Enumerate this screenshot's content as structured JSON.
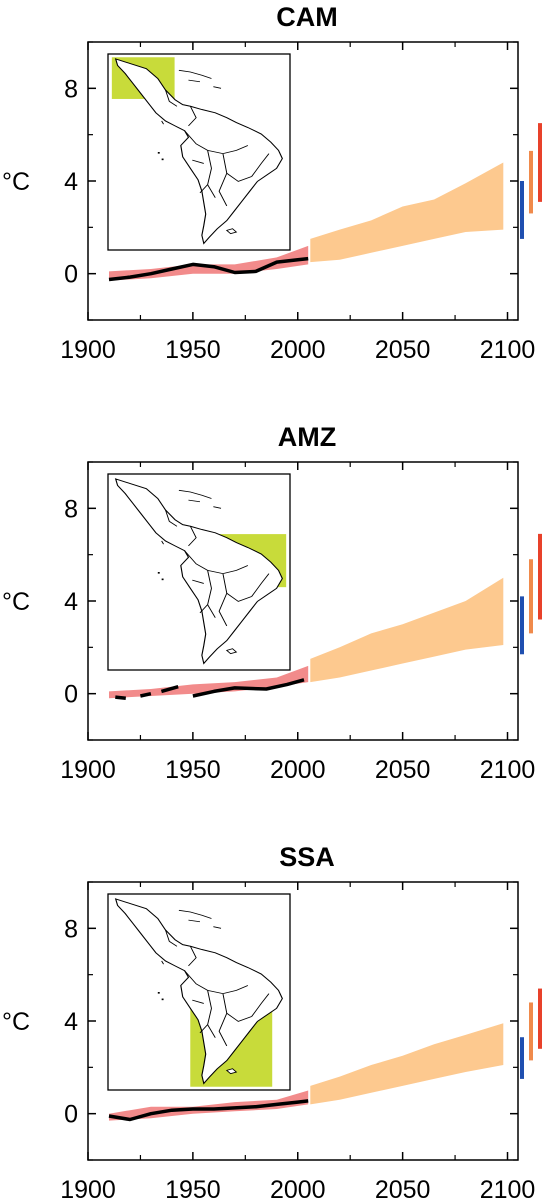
{
  "colors": {
    "obs_band": "#f28b8b",
    "obs_line": "#000000",
    "proj_band": "#fdc98f",
    "bar_blue": "#1f4fb0",
    "bar_orange": "#f08a4b",
    "bar_red": "#e8412a",
    "region": "#c8db3a"
  },
  "chart_data": [
    {
      "type": "area",
      "title": "CAM",
      "ylabel": "°C",
      "xlim": [
        1900,
        2105
      ],
      "ylim": [
        -2,
        10
      ],
      "xticks": [
        1900,
        1950,
        2000,
        2050,
        2100
      ],
      "yticks": [
        0,
        4,
        8
      ],
      "observed_band": {
        "x": [
          1910,
          1930,
          1950,
          1970,
          1990,
          2005
        ],
        "low": [
          -0.3,
          -0.2,
          0.0,
          0.0,
          0.2,
          0.4
        ],
        "high": [
          0.1,
          0.2,
          0.4,
          0.4,
          0.7,
          1.2
        ]
      },
      "observed_line": {
        "x": [
          1910,
          1920,
          1930,
          1940,
          1950,
          1960,
          1970,
          1980,
          1990,
          2000,
          2005
        ],
        "y": [
          -0.25,
          -0.15,
          0.0,
          0.2,
          0.4,
          0.3,
          0.05,
          0.1,
          0.5,
          0.6,
          0.65
        ],
        "segments": [
          [
            0,
            10
          ]
        ]
      },
      "projection_band": {
        "x": [
          2006,
          2020,
          2035,
          2050,
          2065,
          2080,
          2098
        ],
        "low": [
          0.5,
          0.6,
          0.9,
          1.2,
          1.5,
          1.8,
          1.9
        ],
        "high": [
          1.5,
          1.9,
          2.3,
          2.9,
          3.2,
          3.9,
          4.8
        ]
      },
      "end_bars": [
        {
          "color": "#1f4fb0",
          "low": 1.5,
          "high": 4.0
        },
        {
          "color": "#f08a4b",
          "low": 2.6,
          "high": 5.3
        },
        {
          "color": "#e8412a",
          "low": 3.1,
          "high": 6.5
        }
      ],
      "region_box": {
        "x0": 0.0,
        "x1": 0.36,
        "y0": 0.0,
        "y1": 0.22
      }
    },
    {
      "type": "area",
      "title": "AMZ",
      "ylabel": "°C",
      "xlim": [
        1900,
        2105
      ],
      "ylim": [
        -2,
        10
      ],
      "xticks": [
        1900,
        1950,
        2000,
        2050,
        2100
      ],
      "yticks": [
        0,
        4,
        8
      ],
      "observed_band": {
        "x": [
          1910,
          1930,
          1950,
          1970,
          1990,
          2005
        ],
        "low": [
          -0.2,
          -0.1,
          0.0,
          0.1,
          0.3,
          0.5
        ],
        "high": [
          0.1,
          0.2,
          0.4,
          0.5,
          0.7,
          1.2
        ]
      },
      "observed_line": {
        "x": [
          1913,
          1918,
          1925,
          1930,
          1935,
          1943,
          1950,
          1960,
          1970,
          1985,
          1995,
          2003
        ],
        "y": [
          -0.15,
          -0.2,
          -0.1,
          0.0,
          0.1,
          0.3,
          -0.1,
          0.1,
          0.25,
          0.2,
          0.4,
          0.6
        ],
        "segments": [
          [
            0,
            1
          ],
          [
            2,
            3
          ],
          [
            4,
            5
          ],
          [
            6,
            11
          ]
        ]
      },
      "projection_band": {
        "x": [
          2006,
          2020,
          2035,
          2050,
          2065,
          2080,
          2098
        ],
        "low": [
          0.5,
          0.7,
          1.0,
          1.3,
          1.6,
          1.9,
          2.1
        ],
        "high": [
          1.5,
          2.0,
          2.6,
          3.0,
          3.5,
          4.0,
          5.0
        ]
      },
      "end_bars": [
        {
          "color": "#1f4fb0",
          "low": 1.7,
          "high": 4.2
        },
        {
          "color": "#f08a4b",
          "low": 2.6,
          "high": 5.8
        },
        {
          "color": "#e8412a",
          "low": 3.2,
          "high": 6.9
        }
      ],
      "region_box": {
        "x0": 0.44,
        "x1": 1.0,
        "y0": 0.3,
        "y1": 0.58
      }
    },
    {
      "type": "area",
      "title": "SSA",
      "ylabel": "°C",
      "xlim": [
        1900,
        2105
      ],
      "ylim": [
        -2,
        10
      ],
      "xticks": [
        1900,
        1950,
        2000,
        2050,
        2100
      ],
      "yticks": [
        0,
        4,
        8
      ],
      "observed_band": {
        "x": [
          1910,
          1930,
          1950,
          1970,
          1990,
          2005
        ],
        "low": [
          -0.3,
          -0.2,
          0.0,
          0.1,
          0.2,
          0.4
        ],
        "high": [
          0.0,
          0.3,
          0.3,
          0.5,
          0.6,
          1.0
        ]
      },
      "observed_line": {
        "x": [
          1910,
          1920,
          1930,
          1940,
          1950,
          1960,
          1970,
          1980,
          1990,
          2000,
          2005
        ],
        "y": [
          -0.1,
          -0.25,
          0.0,
          0.15,
          0.2,
          0.2,
          0.25,
          0.3,
          0.4,
          0.5,
          0.55
        ],
        "segments": [
          [
            0,
            10
          ]
        ]
      },
      "projection_band": {
        "x": [
          2006,
          2020,
          2035,
          2050,
          2065,
          2080,
          2098
        ],
        "low": [
          0.4,
          0.6,
          0.9,
          1.2,
          1.5,
          1.8,
          2.1
        ],
        "high": [
          1.2,
          1.6,
          2.1,
          2.5,
          3.0,
          3.4,
          3.9
        ]
      },
      "end_bars": [
        {
          "color": "#1f4fb0",
          "low": 1.5,
          "high": 3.3
        },
        {
          "color": "#f08a4b",
          "low": 2.3,
          "high": 4.8
        },
        {
          "color": "#e8412a",
          "low": 2.8,
          "high": 5.4
        }
      ],
      "region_box": {
        "x0": 0.45,
        "x1": 0.92,
        "y0": 0.57,
        "y1": 1.0
      }
    }
  ]
}
